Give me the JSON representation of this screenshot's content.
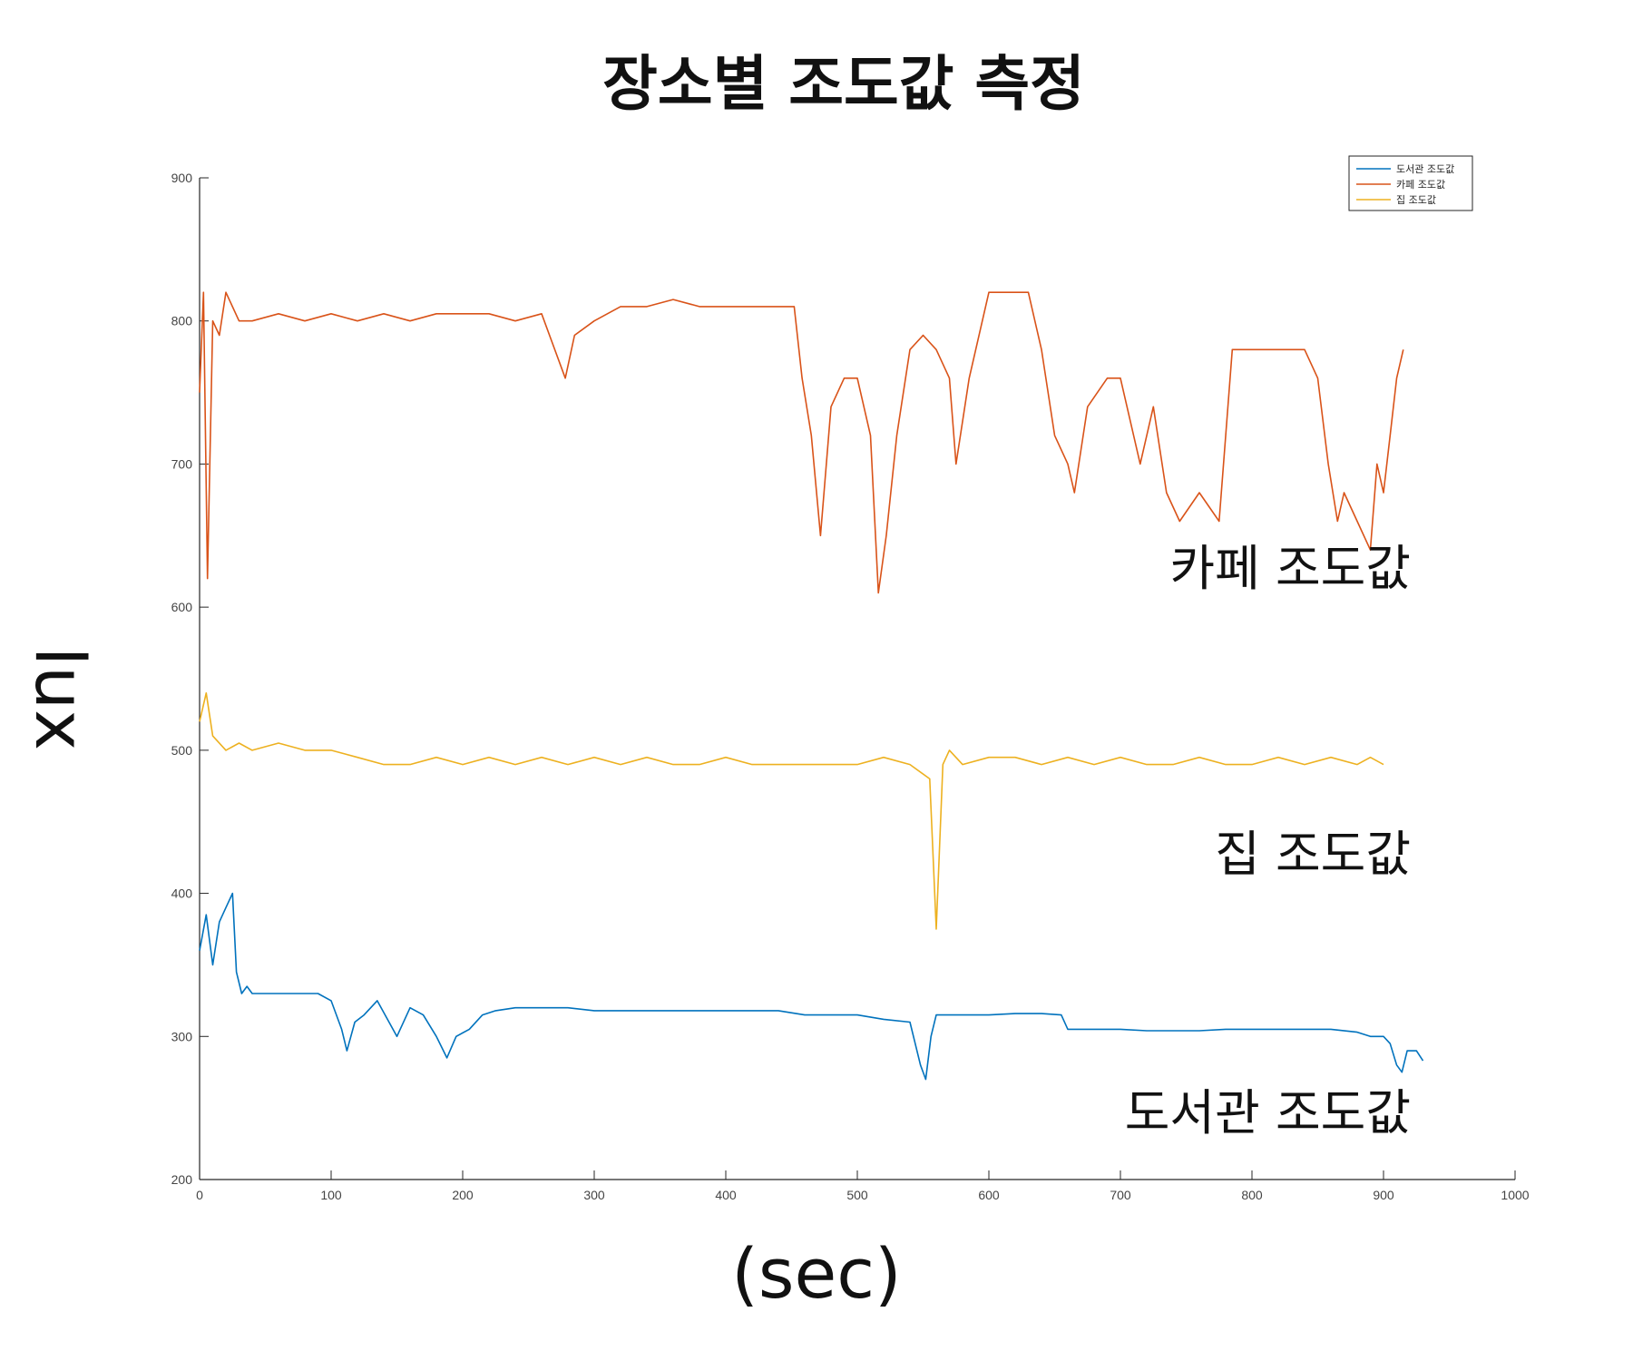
{
  "chart_data": {
    "type": "line",
    "title": "장소별 조도값 측정",
    "xlabel": "(sec)",
    "ylabel": "lux",
    "xlim": [
      0,
      1000
    ],
    "ylim": [
      200,
      900
    ],
    "x_ticks": [
      0,
      100,
      200,
      300,
      400,
      500,
      600,
      700,
      800,
      900,
      1000
    ],
    "y_ticks": [
      200,
      300,
      400,
      500,
      600,
      700,
      800,
      900
    ],
    "grid": false,
    "legend_position": "top-right",
    "legend": [
      "도서관 조도값",
      "카페 조도값",
      "집 조도값"
    ],
    "series": [
      {
        "name": "도서관 조도값",
        "color": "#0072BD",
        "x": [
          0,
          5,
          10,
          15,
          20,
          25,
          28,
          32,
          36,
          40,
          50,
          60,
          70,
          80,
          90,
          100,
          108,
          112,
          118,
          125,
          135,
          150,
          160,
          170,
          180,
          188,
          195,
          205,
          215,
          225,
          240,
          260,
          280,
          300,
          320,
          340,
          360,
          380,
          400,
          420,
          440,
          460,
          480,
          500,
          520,
          540,
          548,
          552,
          556,
          560,
          570,
          580,
          600,
          620,
          640,
          655,
          660,
          680,
          700,
          720,
          740,
          760,
          780,
          800,
          820,
          840,
          860,
          880,
          890,
          900,
          905,
          910,
          914,
          918,
          925,
          930
        ],
        "values": [
          360,
          385,
          350,
          380,
          390,
          400,
          345,
          330,
          335,
          330,
          330,
          330,
          330,
          330,
          330,
          325,
          305,
          290,
          310,
          315,
          325,
          300,
          320,
          315,
          300,
          285,
          300,
          305,
          315,
          318,
          320,
          320,
          320,
          318,
          318,
          318,
          318,
          318,
          318,
          318,
          318,
          315,
          315,
          315,
          312,
          310,
          280,
          270,
          300,
          315,
          315,
          315,
          315,
          316,
          316,
          315,
          305,
          305,
          305,
          304,
          304,
          304,
          305,
          305,
          305,
          305,
          305,
          303,
          300,
          300,
          295,
          280,
          275,
          290,
          290,
          283
        ]
      },
      {
        "name": "카페 조도값",
        "color": "#D95319",
        "x": [
          0,
          3,
          6,
          10,
          15,
          20,
          30,
          40,
          60,
          80,
          100,
          120,
          140,
          160,
          180,
          200,
          220,
          240,
          260,
          278,
          285,
          300,
          320,
          340,
          360,
          380,
          400,
          420,
          440,
          452,
          458,
          465,
          472,
          480,
          490,
          500,
          510,
          516,
          522,
          530,
          540,
          550,
          560,
          570,
          575,
          585,
          600,
          620,
          630,
          640,
          650,
          660,
          665,
          675,
          690,
          700,
          715,
          725,
          735,
          745,
          760,
          775,
          785,
          800,
          820,
          840,
          850,
          858,
          865,
          870,
          880,
          890,
          895,
          900,
          905,
          910,
          915
        ],
        "values": [
          750,
          820,
          620,
          800,
          790,
          820,
          800,
          800,
          805,
          800,
          805,
          800,
          805,
          800,
          805,
          805,
          805,
          800,
          805,
          760,
          790,
          800,
          810,
          810,
          815,
          810,
          810,
          810,
          810,
          810,
          760,
          720,
          650,
          740,
          760,
          760,
          720,
          610,
          650,
          720,
          780,
          790,
          780,
          760,
          700,
          760,
          820,
          820,
          820,
          780,
          720,
          700,
          680,
          740,
          760,
          760,
          700,
          740,
          680,
          660,
          680,
          660,
          780,
          780,
          780,
          780,
          760,
          700,
          660,
          680,
          660,
          640,
          700,
          680,
          720,
          760,
          780
        ]
      },
      {
        "name": "집 조도값",
        "color": "#EDB120",
        "x": [
          0,
          5,
          10,
          20,
          30,
          40,
          60,
          80,
          100,
          120,
          140,
          160,
          180,
          200,
          220,
          240,
          260,
          280,
          300,
          320,
          340,
          360,
          380,
          400,
          420,
          440,
          460,
          480,
          500,
          520,
          540,
          555,
          560,
          565,
          570,
          580,
          600,
          620,
          640,
          660,
          680,
          700,
          720,
          740,
          760,
          780,
          800,
          820,
          840,
          860,
          880,
          890,
          900
        ],
        "values": [
          520,
          540,
          510,
          500,
          505,
          500,
          505,
          500,
          500,
          495,
          490,
          490,
          495,
          490,
          495,
          490,
          495,
          490,
          495,
          490,
          495,
          490,
          490,
          495,
          490,
          490,
          490,
          490,
          490,
          495,
          490,
          480,
          375,
          490,
          500,
          490,
          495,
          495,
          490,
          495,
          490,
          495,
          490,
          490,
          495,
          490,
          490,
          495,
          490,
          495,
          490,
          495,
          490
        ]
      }
    ],
    "annotations": [
      "카페 조도값",
      "집 조도값",
      "도서관 조도값"
    ]
  }
}
